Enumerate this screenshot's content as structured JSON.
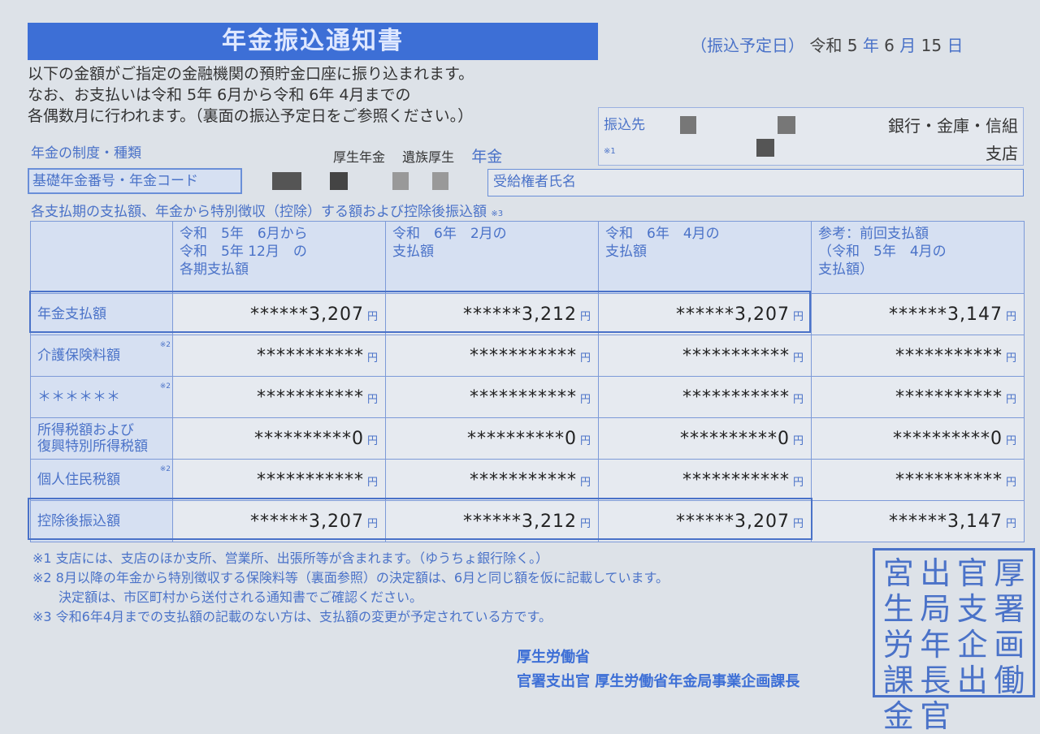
{
  "title": "年金振込通知書",
  "intro": [
    "以下の金額がご指定の金融機関の預貯金口座に振り込まれます。",
    "なお、お支払いは令和 5年 6月から令和 6年 4月までの",
    "各偶数月に行われます。（裏面の振込予定日をご参照ください。）"
  ],
  "scheduled_date": {
    "label": "（振込予定日）",
    "era": "令和",
    "year": "5",
    "year_unit": "年",
    "month": "6",
    "month_unit": "月",
    "day": "15",
    "day_unit": "日"
  },
  "bank": {
    "label": "振込先",
    "note": "※1",
    "bank_types": "銀行・金庫・信組",
    "branch": "支店"
  },
  "pension_type": {
    "label": "年金の制度・種類",
    "value1": "厚生年金",
    "value2": "遺族厚生",
    "value3": "年金"
  },
  "pension_number_label": "基礎年金番号・年金コード",
  "recipient_label": "受給権者氏名",
  "table_caption": "各支払期の支払額、年金から特別徴収（控除）する額および控除後振込額",
  "table_caption_note": "※3",
  "columns": [
    "令和　5年　6月から\n令和　5年 12月　の\n各期支払額",
    "令和　6年　2月の\n支払額",
    "令和　6年　4月の\n支払額",
    "参考：前回支払額\n（令和　5年　4月の\n支払額）"
  ],
  "yen": "円",
  "rows": [
    {
      "label": "年金支払額",
      "note": "",
      "values": [
        "******3,207",
        "******3,212",
        "******3,207",
        "******3,147"
      ]
    },
    {
      "label": "介護保険料額",
      "note": "※2",
      "values": [
        "***********",
        "***********",
        "***********",
        "***********"
      ]
    },
    {
      "label": "＊＊＊＊＊＊",
      "note": "※2",
      "values": [
        "***********",
        "***********",
        "***********",
        "***********"
      ]
    },
    {
      "label": "所得税額および\n復興特別所得税額",
      "note": "",
      "values": [
        "**********0",
        "**********0",
        "**********0",
        "**********0"
      ]
    },
    {
      "label": "個人住民税額",
      "note": "※2",
      "values": [
        "***********",
        "***********",
        "***********",
        "***********"
      ]
    },
    {
      "label": "控除後振込額",
      "note": "",
      "values": [
        "******3,207",
        "******3,212",
        "******3,207",
        "******3,147"
      ]
    }
  ],
  "footnotes": [
    "※1 支店には、支店のほか支所、営業所、出張所等が含まれます。（ゆうちょ銀行除く。）",
    "※2 8月以降の年金から特別徴収する保険料等（裏面参照）の決定額は、6月と同じ額を仮に記載しています。",
    "　　決定額は、市区町村から送付される通知書でご確認ください。",
    "※3 令和6年4月までの支払額の記載のない方は、支払額の変更が予定されている方です。"
  ],
  "issuer": [
    "厚生労働省",
    "官署支出官 厚生労働省年金局事業企画課長"
  ],
  "seal_text": "宮出官厚生局支署労年企画課長出働金官",
  "colors": {
    "accent": "#3d6fd6",
    "background": "#dde2e8"
  }
}
